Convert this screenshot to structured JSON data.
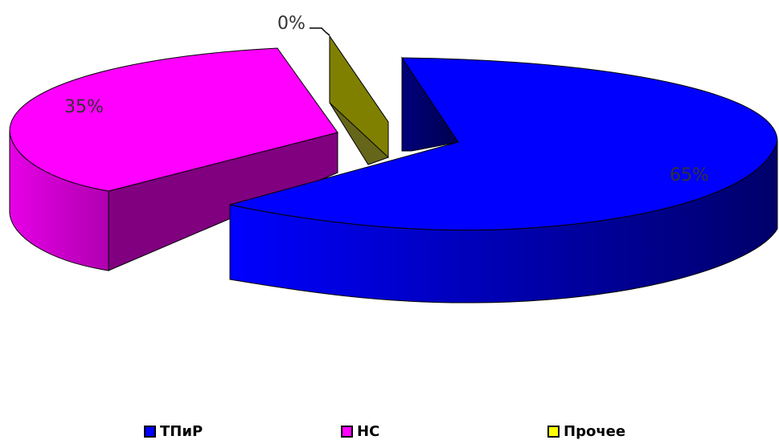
{
  "chart_data": {
    "type": "pie",
    "three_d": true,
    "exploded": true,
    "title": "",
    "categories": [
      "ТПиР",
      "НС",
      "Прочее"
    ],
    "values": [
      65,
      35,
      0
    ],
    "data_labels": [
      "65%",
      "35%",
      "0%"
    ],
    "colors": [
      "#0000FF",
      "#FF00FF",
      "#808000"
    ],
    "legend_colors": [
      "#0000FF",
      "#FF00FF",
      "#FFFF00"
    ],
    "legend": {
      "position": "bottom",
      "items": [
        {
          "label": "ТПиР"
        },
        {
          "label": "НС"
        },
        {
          "label": "Прочее"
        }
      ]
    },
    "grid": false
  }
}
